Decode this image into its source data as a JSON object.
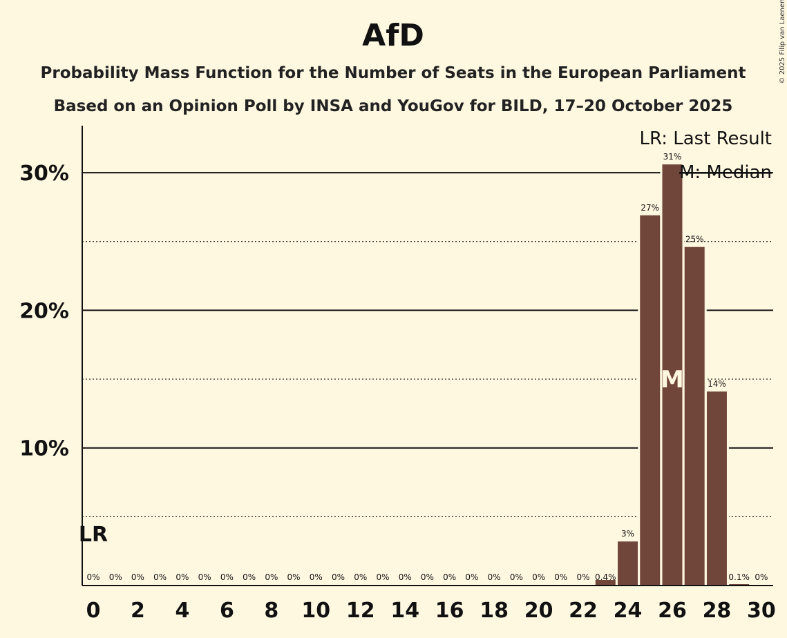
{
  "chart_data": {
    "type": "bar",
    "title": "AfD",
    "subtitle1": "Probability Mass Function for the Number of Seats in the European Parliament",
    "subtitle2": "Based on an Opinion Poll by INSA and YouGov for BILD, 17–20 October 2025",
    "copyright": "© 2025 Filip van Laenen",
    "x": [
      0,
      1,
      2,
      3,
      4,
      5,
      6,
      7,
      8,
      9,
      10,
      11,
      12,
      13,
      14,
      15,
      16,
      17,
      18,
      19,
      20,
      21,
      22,
      23,
      24,
      25,
      26,
      27,
      28,
      29,
      30
    ],
    "values": [
      0,
      0,
      0,
      0,
      0,
      0,
      0,
      0,
      0,
      0,
      0,
      0,
      0,
      0,
      0,
      0,
      0,
      0,
      0,
      0,
      0,
      0,
      0,
      0.4,
      3.2,
      26.9,
      30.6,
      24.6,
      14.1,
      0.1,
      0
    ],
    "labels": [
      "0%",
      "0%",
      "0%",
      "0%",
      "0%",
      "0%",
      "0%",
      "0%",
      "0%",
      "0%",
      "0%",
      "0%",
      "0%",
      "0%",
      "0%",
      "0%",
      "0%",
      "0%",
      "0%",
      "0%",
      "0%",
      "0%",
      "0%",
      "0.4%",
      "3%",
      "27%",
      "31%",
      "25%",
      "14%",
      "0.1%",
      "0%"
    ],
    "xticks": [
      0,
      2,
      4,
      6,
      8,
      10,
      12,
      14,
      16,
      18,
      20,
      22,
      24,
      26,
      28,
      30
    ],
    "yticks": [
      {
        "value": 10,
        "label": "10%"
      },
      {
        "value": 20,
        "label": "20%"
      },
      {
        "value": 30,
        "label": "30%"
      }
    ],
    "minor_yticks": [
      5,
      15,
      25
    ],
    "ylim": [
      0,
      33
    ],
    "xlabel": "",
    "ylabel": "",
    "last_result": {
      "x": 0,
      "label": "LR"
    },
    "median": {
      "x": 26,
      "label": "M"
    },
    "legend": {
      "position": "top-right",
      "items": [
        "LR: Last Result",
        "M: Median"
      ]
    },
    "bar_color": "#70463a",
    "background": "#fff8e1"
  }
}
